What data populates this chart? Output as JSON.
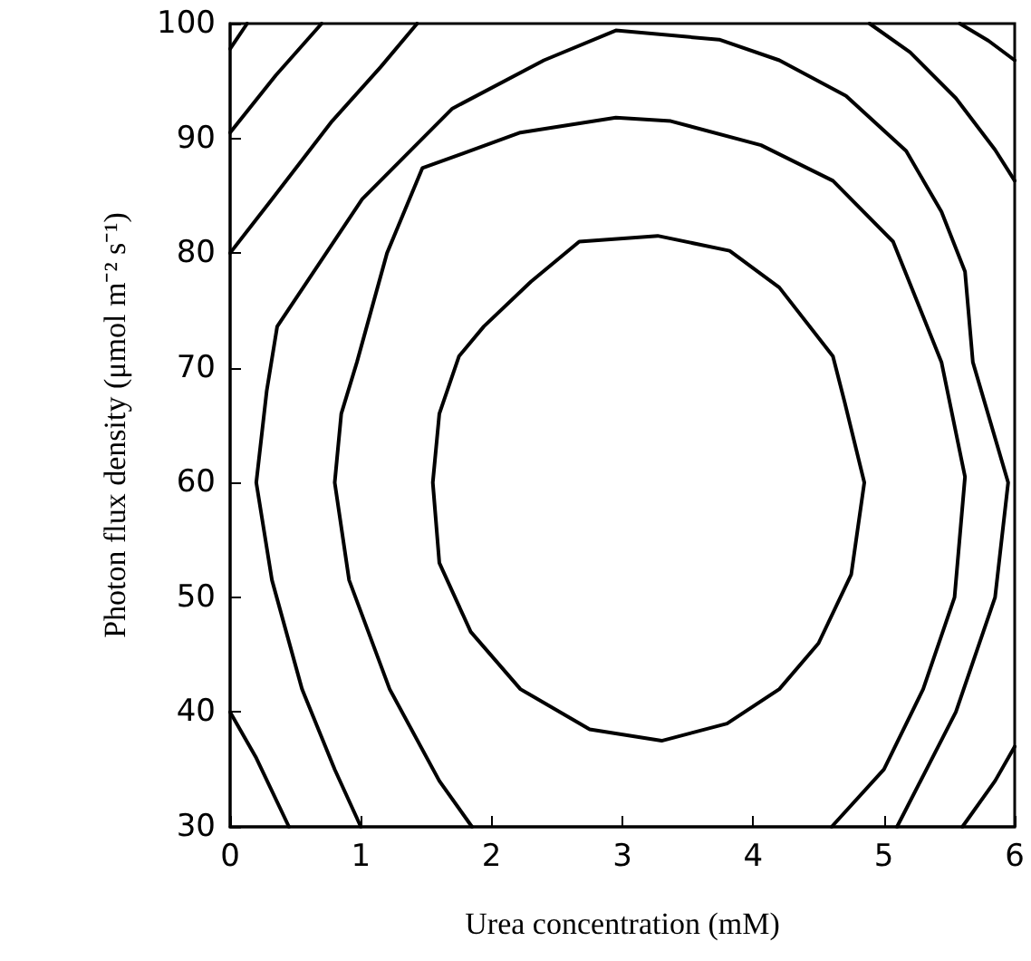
{
  "chart_data": {
    "type": "line",
    "xlabel": "Urea concentration (mM)",
    "ylabel": "Photon flux density (μmol m⁻² s⁻¹)",
    "xlim": [
      0,
      6
    ],
    "xticks": [
      0,
      1,
      2,
      3,
      4,
      5,
      6
    ],
    "ylim": [
      30,
      100
    ],
    "yticks": [
      30,
      40,
      50,
      60,
      70,
      80,
      90,
      100
    ],
    "grid": false,
    "marker": "none",
    "line_style": "solid",
    "series": [
      {
        "color": "#000000",
        "x": [
          1.55,
          1.6,
          1.75,
          1.94,
          2.3,
          2.67,
          3.27,
          3.82,
          4.2,
          4.61,
          4.7,
          4.85,
          null,
          1.55,
          1.6,
          1.84,
          2.22,
          2.75,
          3.3,
          3.8,
          4.2,
          4.5,
          4.75,
          4.85,
          null,
          1.85,
          1.6,
          1.22,
          0.91,
          0.8,
          0.85,
          0.97,
          1.2,
          1.47,
          2.22,
          2.95,
          3.37,
          4.06,
          4.61,
          5.07,
          5.44,
          5.62,
          5.54,
          5.3,
          5.0,
          4.6,
          null,
          1.0,
          0.8,
          0.55,
          0.32,
          0.2,
          0.28,
          0.36,
          1.01,
          1.7,
          2.4,
          2.95,
          3.74,
          4.2,
          4.71,
          5.17,
          5.44,
          5.62,
          5.68,
          5.95,
          5.85,
          5.55,
          5.1,
          null,
          0,
          0.32,
          0.78,
          1.15,
          1.43,
          null,
          4.89,
          5.2,
          5.55,
          5.85,
          6,
          null,
          0,
          0.2,
          0.45,
          null,
          5.6,
          5.85,
          6,
          null,
          0,
          0.35,
          0.7,
          null,
          5.58,
          5.8,
          6,
          null,
          0,
          0.13
        ],
        "values": [
          60,
          66,
          71,
          73.6,
          77.5,
          81,
          81.5,
          80.2,
          77,
          71,
          67,
          60,
          null,
          60,
          53,
          47,
          42,
          38.5,
          37.5,
          39,
          42,
          46,
          52,
          60,
          null,
          30,
          34,
          42,
          51.5,
          60,
          66,
          70.5,
          80,
          87.4,
          90.5,
          91.8,
          91.5,
          89.4,
          86.3,
          81,
          70.5,
          60.5,
          50,
          42,
          35,
          30,
          null,
          30,
          35,
          42,
          51.5,
          60,
          68,
          73.6,
          84.7,
          92.6,
          96.8,
          99.4,
          98.6,
          96.8,
          93.7,
          88.9,
          83.6,
          78.4,
          70.5,
          60,
          50,
          40,
          30,
          null,
          80,
          84.7,
          91.5,
          96.2,
          100,
          null,
          100,
          97.5,
          93.5,
          89,
          86.3,
          null,
          40,
          36,
          30,
          null,
          30,
          34,
          37,
          null,
          90.5,
          95.5,
          100,
          null,
          100,
          98.5,
          96.8,
          null,
          97.8,
          100
        ]
      }
    ]
  }
}
